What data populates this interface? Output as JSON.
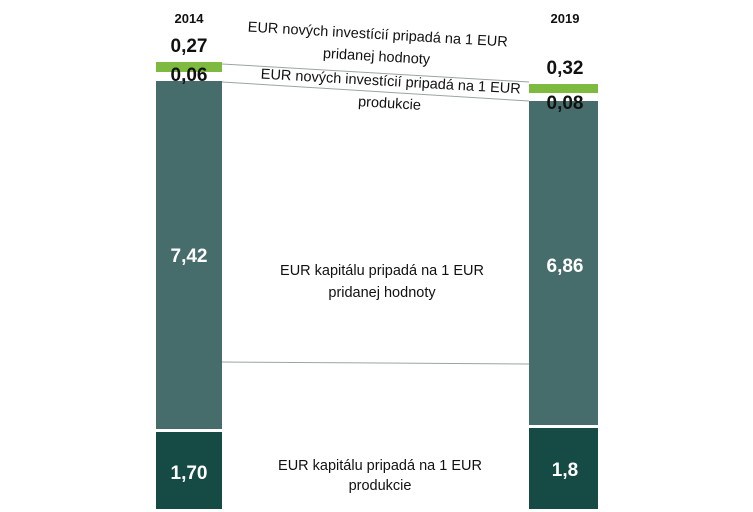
{
  "colors": {
    "investment_value_added": "#7dba3f",
    "investment_production": "#7dba3f",
    "capital_value_added": "#466d6b",
    "capital_production": "#164a44",
    "connector": "#9aa5a3"
  },
  "chart_data": {
    "type": "bar",
    "stacked": true,
    "categories": [
      "2014",
      "2019"
    ],
    "series": [
      {
        "name": "EUR kapitálu pripadá na 1 EUR produkcie",
        "values": [
          "1,70",
          "1,8"
        ]
      },
      {
        "name": "EUR kapitálu pripadá na 1 EUR pridanej hodnoty",
        "values": [
          "7,42",
          "6,86"
        ]
      },
      {
        "name": "EUR nových investícií pripadá na 1 EUR produkcie",
        "values": [
          "0,06",
          "0,08"
        ]
      },
      {
        "name": "EUR nových investícií pripadá na 1 EUR pridanej hodnoty",
        "values": [
          "0,27",
          "0,32"
        ]
      }
    ],
    "annotations": {
      "inv_va": [
        "EUR nových investícií pripadá na 1 EUR",
        "pridanej hodnoty"
      ],
      "inv_prod": [
        "EUR nových investícií pripadá na 1 EUR",
        "produkcie"
      ],
      "cap_va": [
        "EUR kapitálu pripadá na 1 EUR",
        "pridanej hodnoty"
      ],
      "cap_prod": [
        "EUR kapitálu pripadá na 1 EUR",
        "produkcie"
      ]
    }
  }
}
